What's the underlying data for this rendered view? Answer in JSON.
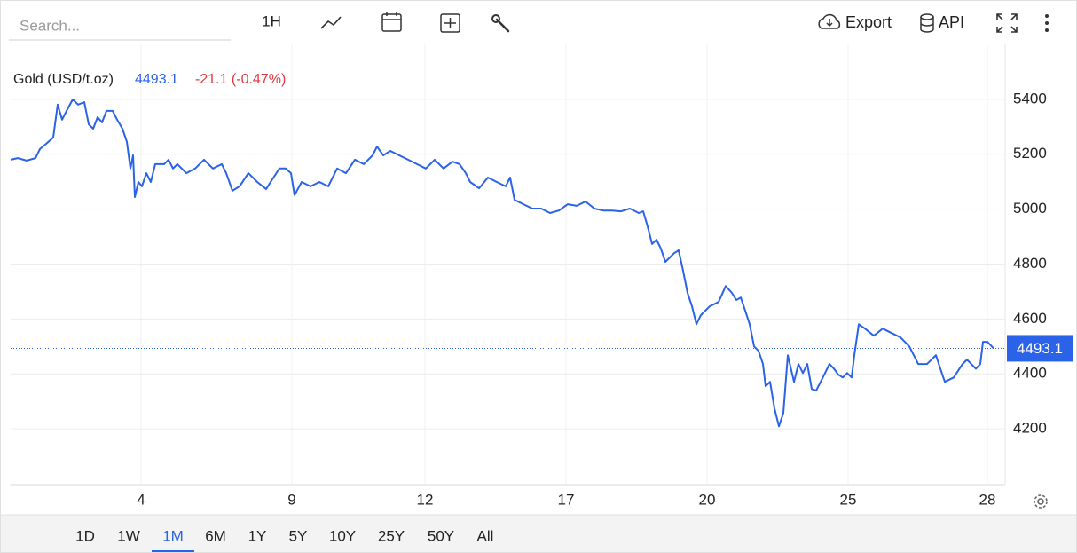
{
  "toolbar": {
    "search_placeholder": "Search...",
    "interval": "1H",
    "export": "Export",
    "api": "API"
  },
  "chart_data": {
    "type": "line",
    "title": "Gold (USD/t.oz)",
    "change": "-21.1 (-0.47%)",
    "x": [
      12,
      20,
      30,
      40,
      45,
      52,
      60,
      65,
      70,
      75,
      82,
      88,
      95,
      100,
      105,
      110,
      115,
      120,
      127,
      132,
      138,
      143,
      147,
      150,
      152,
      156,
      160,
      165,
      170,
      175,
      185,
      190,
      195,
      200,
      210,
      220,
      230,
      240,
      250,
      255,
      262,
      270,
      280,
      290,
      300,
      305,
      315,
      322,
      328,
      332,
      340,
      350,
      360,
      370,
      380,
      390,
      400,
      410,
      420,
      425,
      432,
      440,
      450,
      460,
      470,
      480,
      490,
      500,
      510,
      518,
      525,
      530,
      540,
      550,
      560,
      570,
      575,
      580,
      590,
      600,
      610,
      620,
      630,
      640,
      650,
      660,
      670,
      680,
      690,
      700,
      710,
      720,
      725,
      730,
      735,
      740,
      745,
      750,
      755,
      760,
      765,
      770,
      775,
      780,
      785,
      790,
      800,
      810,
      818,
      825,
      830,
      835,
      840,
      845,
      850,
      855,
      860,
      863,
      868,
      873,
      878,
      883,
      888,
      895,
      900,
      905,
      910,
      915,
      920,
      925,
      930,
      935,
      940,
      945,
      950,
      955,
      960,
      963,
      968,
      975,
      985,
      995,
      1005,
      1015,
      1025,
      1030,
      1035,
      1045,
      1055,
      1060,
      1065,
      1075,
      1085,
      1090,
      1100,
      1105,
      1108,
      1113,
      1120
    ],
    "series": [
      {
        "name": "Gold (USD/t.oz)",
        "color": "#2b63e8",
        "values": [
          5180,
          5186,
          5177,
          5186,
          5219,
          5238,
          5261,
          5381,
          5326,
          5358,
          5400,
          5381,
          5390,
          5309,
          5293,
          5335,
          5316,
          5358,
          5358,
          5326,
          5293,
          5245,
          5148,
          5196,
          5044,
          5099,
          5083,
          5131,
          5099,
          5164,
          5164,
          5180,
          5148,
          5164,
          5131,
          5148,
          5180,
          5148,
          5164,
          5131,
          5067,
          5083,
          5131,
          5099,
          5073,
          5099,
          5148,
          5148,
          5131,
          5051,
          5099,
          5083,
          5099,
          5083,
          5148,
          5131,
          5180,
          5164,
          5196,
          5228,
          5196,
          5212,
          5196,
          5180,
          5164,
          5148,
          5180,
          5148,
          5173,
          5164,
          5131,
          5099,
          5076,
          5115,
          5099,
          5083,
          5115,
          5034,
          5018,
          5002,
          5002,
          4986,
          4995,
          5018,
          5012,
          5028,
          5002,
          4995,
          4995,
          4992,
          5002,
          4986,
          4992,
          4937,
          4873,
          4889,
          4856,
          4808,
          4824,
          4840,
          4850,
          4775,
          4695,
          4646,
          4581,
          4614,
          4646,
          4662,
          4720,
          4695,
          4669,
          4678,
          4630,
          4581,
          4500,
          4484,
          4436,
          4355,
          4371,
          4274,
          4209,
          4258,
          4468,
          4371,
          4436,
          4403,
          4436,
          4345,
          4339,
          4371,
          4403,
          4436,
          4419,
          4397,
          4387,
          4403,
          4387,
          4468,
          4581,
          4565,
          4539,
          4565,
          4549,
          4533,
          4500,
          4468,
          4436,
          4436,
          4468,
          4419,
          4371,
          4387,
          4436,
          4452,
          4419,
          4436,
          4517,
          4517,
          4493.1
        ]
      }
    ],
    "xlim": [
      12,
      1133
    ],
    "xticks": [
      {
        "value": 159,
        "label": "4"
      },
      {
        "value": 329,
        "label": "9"
      },
      {
        "value": 479,
        "label": "12"
      },
      {
        "value": 638,
        "label": "17"
      },
      {
        "value": 797,
        "label": "20"
      },
      {
        "value": 956,
        "label": "25"
      },
      {
        "value": 1113,
        "label": "28"
      }
    ],
    "ylim": [
      4000,
      5600
    ],
    "yticks": [
      4200,
      4400,
      4600,
      4800,
      5000,
      5200,
      5400
    ],
    "grid": true
  },
  "ranges": [
    "1D",
    "1W",
    "1M",
    "6M",
    "1Y",
    "5Y",
    "10Y",
    "25Y",
    "50Y",
    "All"
  ],
  "selected_range": "1M"
}
